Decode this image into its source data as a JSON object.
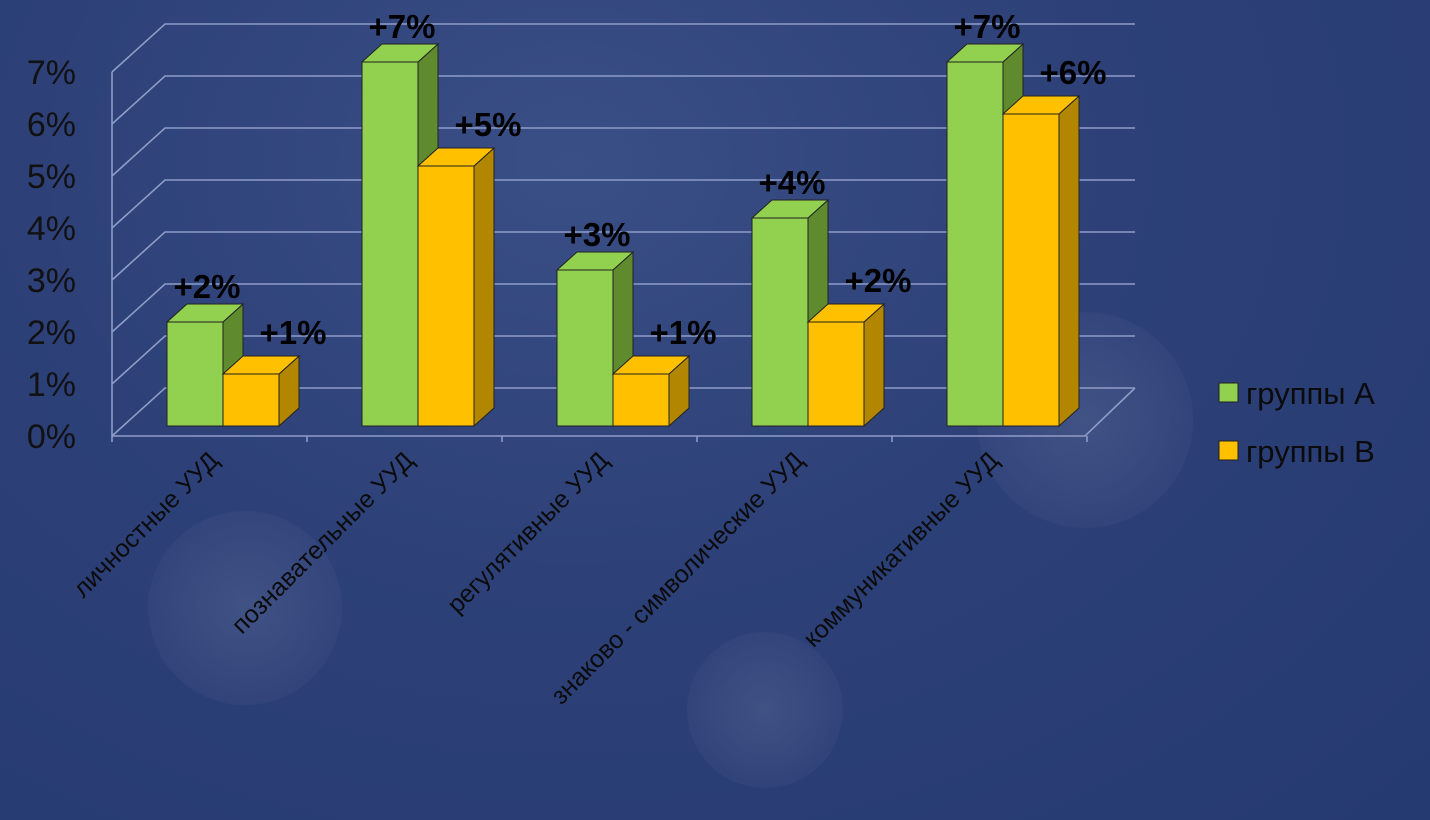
{
  "chart_data": {
    "type": "bar",
    "style": "3d-clustered-column",
    "categories": [
      "личностные УУД",
      "познавательные УУД",
      "регулятивные УУД",
      "знаково - символические УУД",
      "коммуникативные УУД"
    ],
    "series": [
      {
        "name": "группы А",
        "values": [
          2,
          7,
          3,
          4,
          7
        ],
        "labels": [
          "+2%",
          "+7%",
          "+3%",
          "+4%",
          "+7%"
        ],
        "color": "#92d050",
        "side_color": "#5f8b2e"
      },
      {
        "name": "группы В",
        "values": [
          1,
          5,
          1,
          2,
          6
        ],
        "labels": [
          "+1%",
          "+5%",
          "+1%",
          "+2%",
          "+6%"
        ],
        "color": "#ffc000",
        "side_color": "#b38600"
      }
    ],
    "yticks": [
      "0%",
      "1%",
      "2%",
      "3%",
      "4%",
      "5%",
      "6%",
      "7%"
    ],
    "ylim": [
      0,
      7
    ],
    "grid": true,
    "legend_position": "right",
    "title": "",
    "xlabel": "",
    "ylabel": ""
  }
}
